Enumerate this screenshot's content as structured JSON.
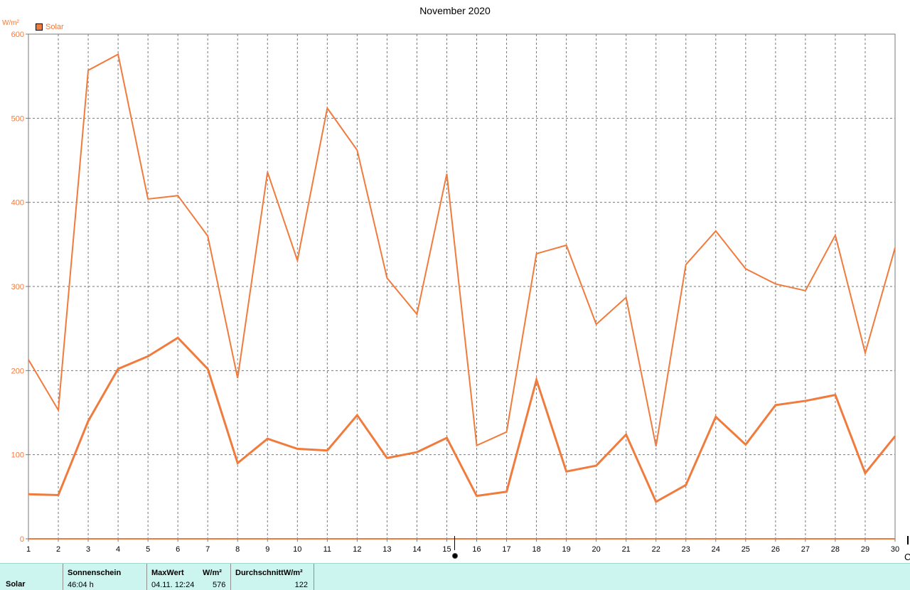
{
  "chart_data": {
    "type": "line",
    "title": "November 2020",
    "ylabel": "W/m²",
    "xlim": [
      1,
      30
    ],
    "ylim": [
      0,
      600
    ],
    "x_ticks": [
      "1",
      "2",
      "3",
      "4",
      "5",
      "6",
      "7",
      "8",
      "9",
      "10",
      "11",
      "12",
      "13",
      "14",
      "15",
      "16",
      "17",
      "18",
      "19",
      "20",
      "21",
      "22",
      "23",
      "24",
      "25",
      "26",
      "27",
      "28",
      "29",
      "30"
    ],
    "y_ticks": [
      "0",
      "100",
      "200",
      "300",
      "400",
      "500",
      "600"
    ],
    "grid": true,
    "legend": {
      "position": "top-left",
      "entries": [
        "Solar"
      ]
    },
    "series": [
      {
        "name": "Solar",
        "color": "#f07b3d",
        "role": "max",
        "values": [
          213,
          153,
          557,
          576,
          404,
          408,
          360,
          191,
          436,
          331,
          512,
          462,
          310,
          267,
          434,
          111,
          127,
          339,
          349,
          255,
          287,
          110,
          326,
          366,
          321,
          303,
          295,
          361,
          221,
          346
        ]
      },
      {
        "name": "Solar",
        "color": "#f07b3d",
        "role": "average",
        "values": [
          53,
          52,
          140,
          202,
          217,
          239,
          202,
          90,
          119,
          107,
          105,
          147,
          96,
          103,
          120,
          51,
          56,
          189,
          80,
          87,
          124,
          44,
          64,
          145,
          112,
          159,
          164,
          171,
          78,
          122
        ]
      }
    ]
  },
  "summary": {
    "row_name": "Solar",
    "col1_head": "Sonnenschein",
    "col1_value": "46:04 h",
    "col2_head": "MaxWert",
    "col2_head_unit": "W/m²",
    "col2_value": "04.11.  12:24",
    "col2_value_number": "576",
    "col3_head": "DurchschnittW/m²",
    "col3_value": "122"
  },
  "bottom_right_label": "C",
  "colors": {
    "series": "#f07b3d",
    "grid": "#777777",
    "axis": "#7a7a7a",
    "summary_bg": "#ccf5f0"
  }
}
